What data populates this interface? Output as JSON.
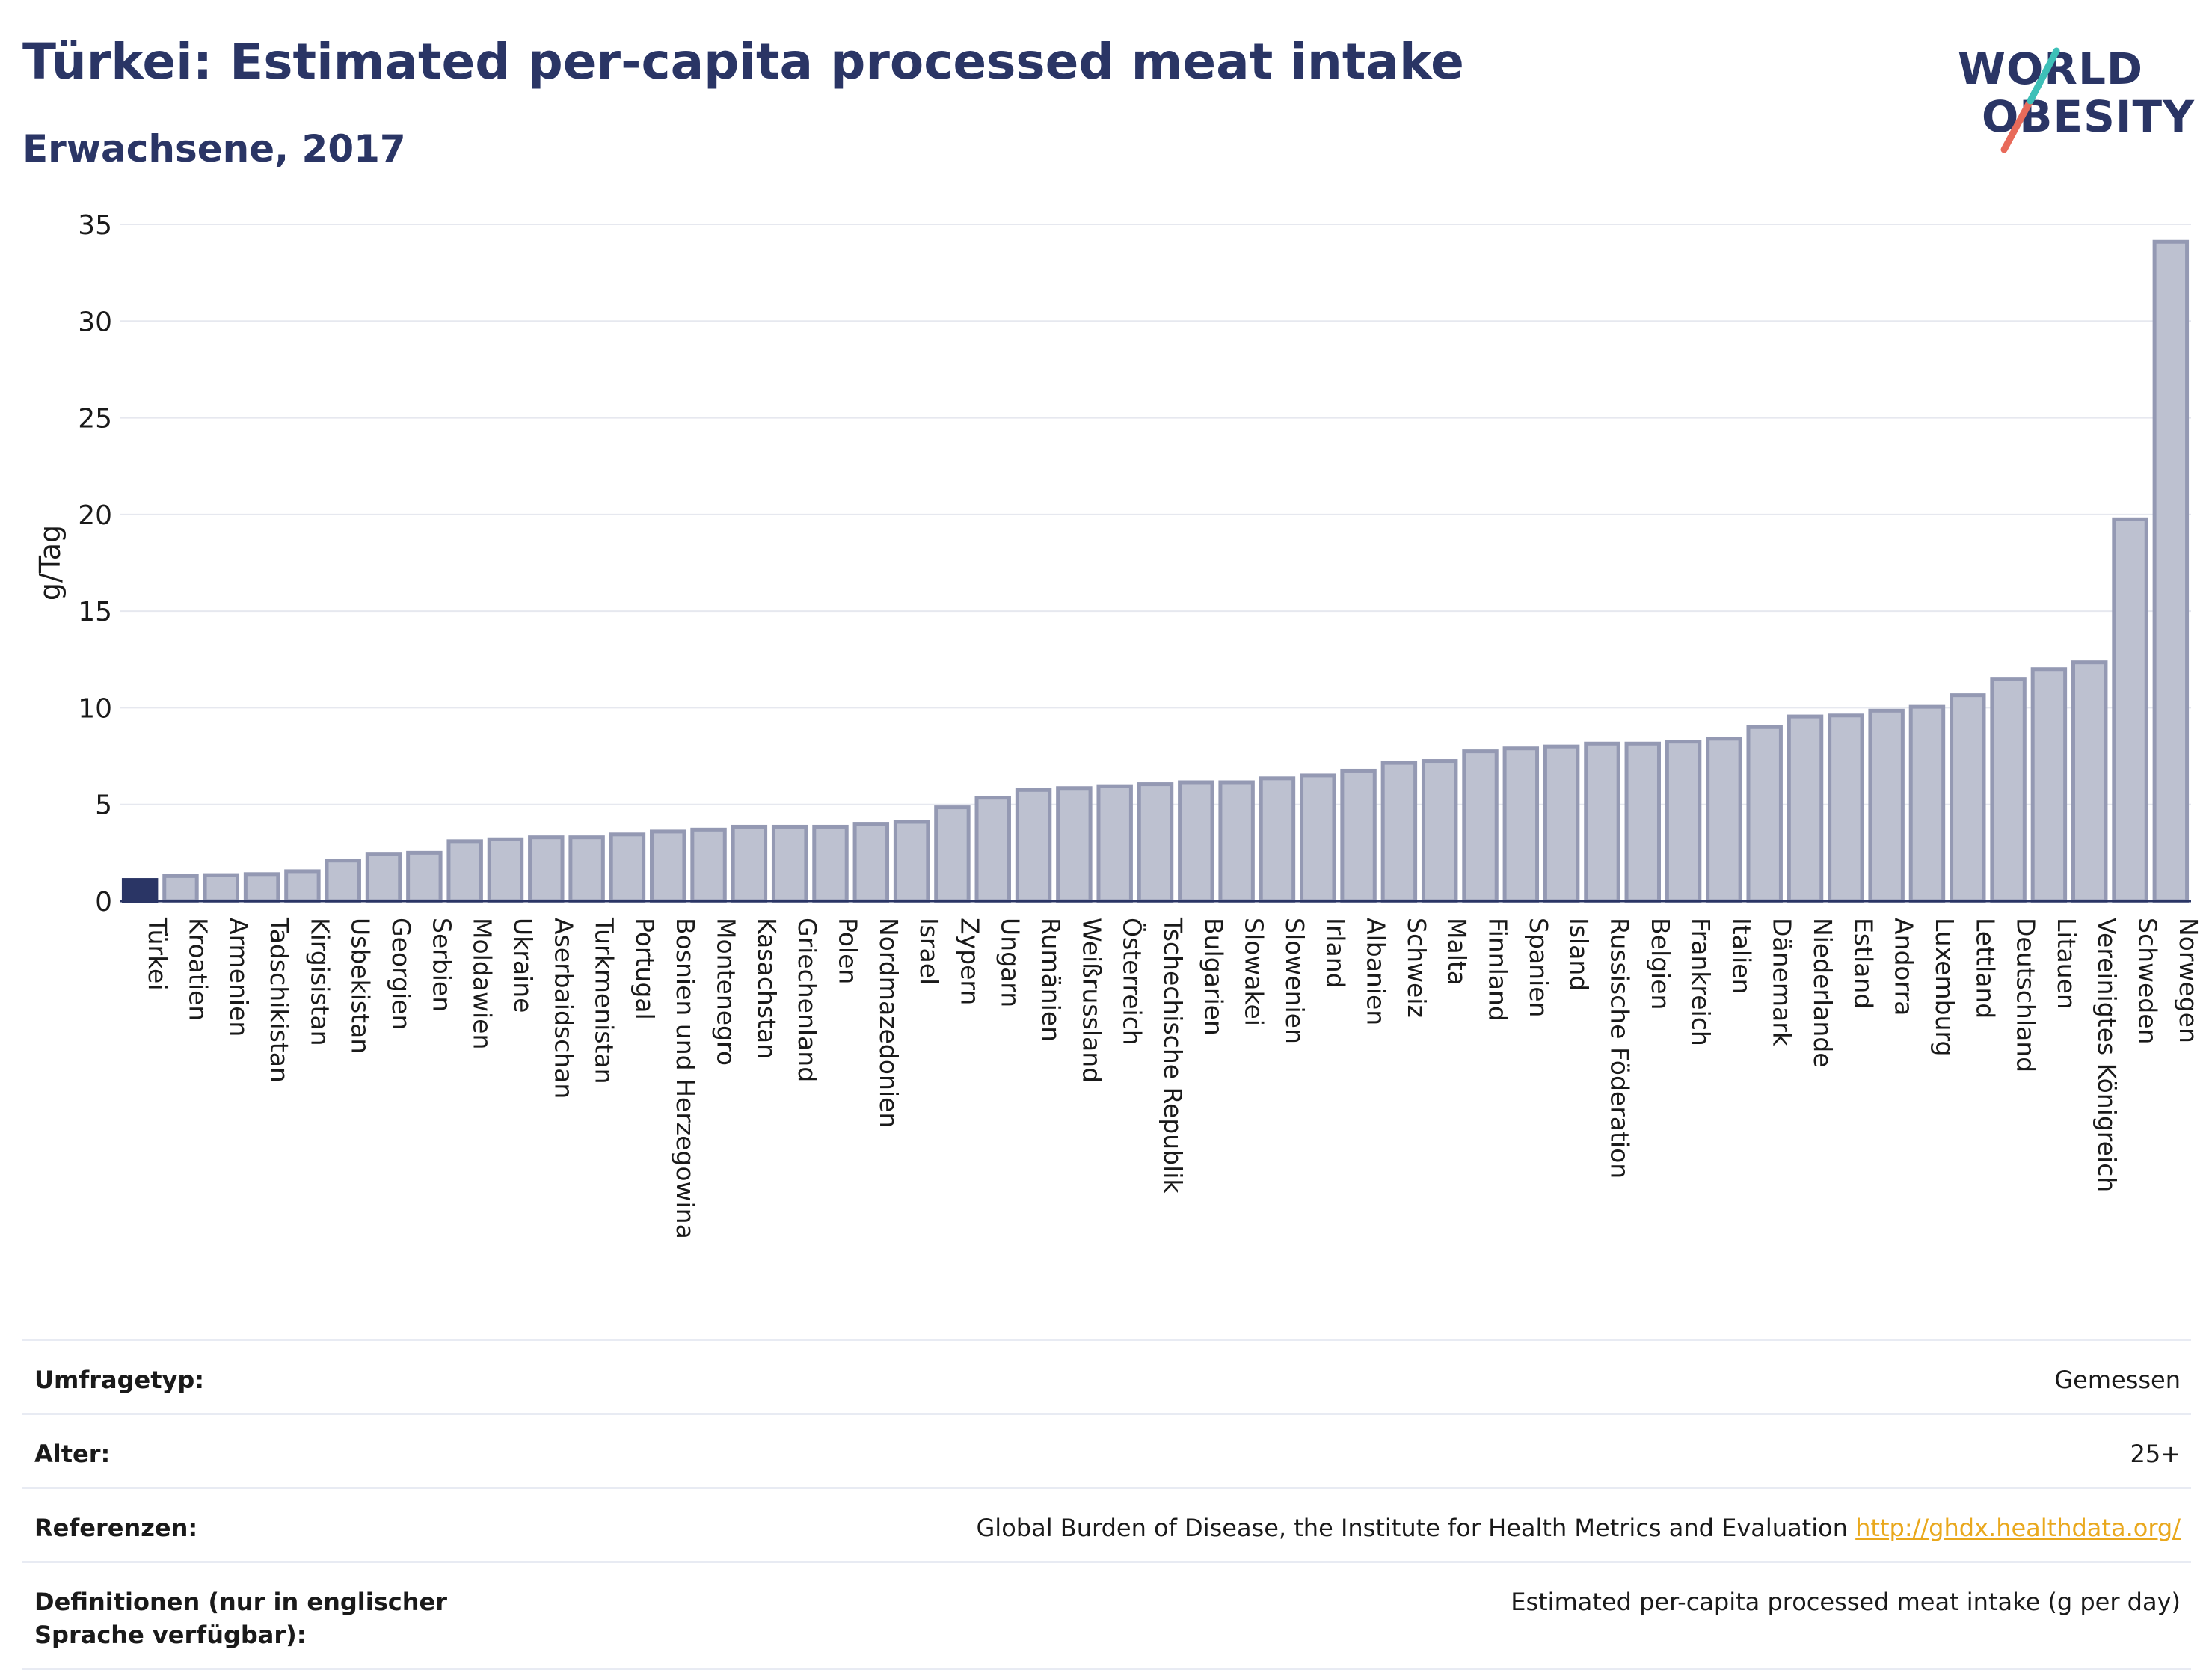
{
  "title": "Türkei: Estimated per-capita processed meat intake",
  "subtitle": "Erwachsene, 2017",
  "logo": {
    "line1": "WORLD",
    "line2": "OBESITY"
  },
  "colors": {
    "highlight": "#2a3565",
    "bar_fill": "#bdc1d0",
    "bar_stroke": "#9499b3",
    "link": "#e9a81d",
    "text": "#2a3565"
  },
  "chart_data": {
    "type": "bar",
    "ylabel": "g/Tag",
    "ylim": [
      0,
      35
    ],
    "yticks": [
      0,
      5,
      10,
      15,
      20,
      25,
      30,
      35
    ],
    "grid": true,
    "highlight": "Türkei",
    "categories": [
      "Türkei",
      "Kroatien",
      "Armenien",
      "Tadschikistan",
      "Kirgisistan",
      "Usbekistan",
      "Georgien",
      "Serbien",
      "Moldawien",
      "Ukraine",
      "Aserbaidschan",
      "Turkmenistan",
      "Portugal",
      "Bosnien und Herzegowina",
      "Montenegro",
      "Kasachstan",
      "Griechenland",
      "Polen",
      "Nordmazedonien",
      "Israel",
      "Zypern",
      "Ungarn",
      "Rumänien",
      "Weißrussland",
      "Österreich",
      "Tschechische Republik",
      "Bulgarien",
      "Slowakei",
      "Slowenien",
      "Irland",
      "Albanien",
      "Schweiz",
      "Malta",
      "Finnland",
      "Spanien",
      "Island",
      "Russische Föderation",
      "Belgien",
      "Frankreich",
      "Italien",
      "Dänemark",
      "Niederlande",
      "Estland",
      "Andorra",
      "Luxemburg",
      "Lettland",
      "Deutschland",
      "Litauen",
      "Vereinigtes Königreich",
      "Schweden",
      "Norwegen"
    ],
    "values": [
      1.1,
      1.3,
      1.35,
      1.4,
      1.55,
      2.1,
      2.45,
      2.5,
      3.1,
      3.2,
      3.3,
      3.3,
      3.45,
      3.6,
      3.7,
      3.85,
      3.85,
      3.85,
      4.0,
      4.1,
      4.85,
      5.35,
      5.75,
      5.85,
      5.95,
      6.05,
      6.15,
      6.15,
      6.35,
      6.5,
      6.75,
      7.15,
      7.25,
      7.75,
      7.9,
      8.0,
      8.15,
      8.15,
      8.25,
      8.4,
      9.0,
      9.55,
      9.6,
      9.85,
      10.05,
      10.65,
      11.5,
      12.0,
      12.35,
      19.75,
      34.1
    ]
  },
  "info": [
    {
      "label": "Umfragetyp:",
      "value": "Gemessen"
    },
    {
      "label": "Alter:",
      "value": "25+"
    },
    {
      "label": "Referenzen:",
      "value": "Global Burden of Disease, the Institute for Health Metrics and Evaluation",
      "link": "http://ghdx.healthdata.org/"
    },
    {
      "label": "Definitionen (nur in englischer Sprache verfügbar):",
      "value": "Estimated per-capita processed meat intake (g per day)"
    }
  ]
}
